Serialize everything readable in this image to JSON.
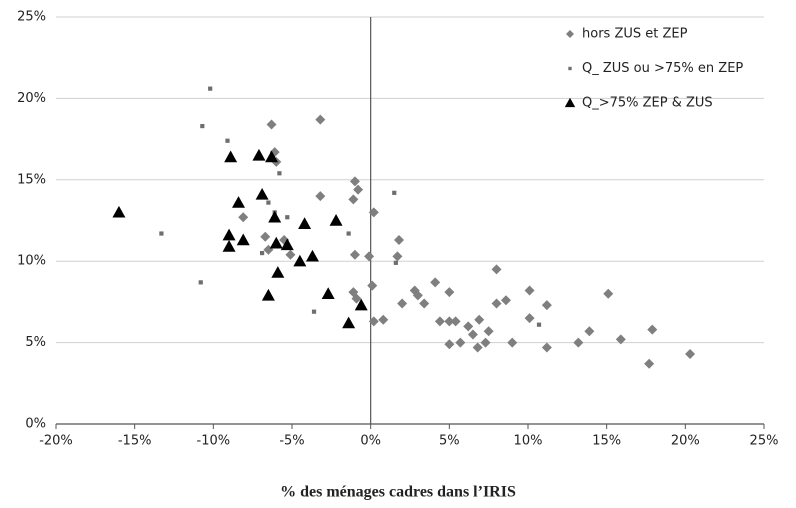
{
  "chart_data": {
    "type": "scatter",
    "xlabel": "% des ménages cadres dans l’IRIS",
    "xlim": [
      -20,
      25
    ],
    "xticks": [
      {
        "value": -20,
        "label": "-20%"
      },
      {
        "value": -15,
        "label": "-15%"
      },
      {
        "value": -10,
        "label": "-10%"
      },
      {
        "value": -5,
        "label": "-5%"
      },
      {
        "value": 0,
        "label": "0%"
      },
      {
        "value": 5,
        "label": "5%"
      },
      {
        "value": 10,
        "label": "10%"
      },
      {
        "value": 15,
        "label": "15%"
      },
      {
        "value": 20,
        "label": "20%"
      },
      {
        "value": 25,
        "label": "25%"
      }
    ],
    "ylim": [
      0,
      25
    ],
    "yticks": [
      {
        "value": 0,
        "label": "0%"
      },
      {
        "value": 5,
        "label": "5%"
      },
      {
        "value": 10,
        "label": "10%"
      },
      {
        "value": 15,
        "label": "15%"
      },
      {
        "value": 20,
        "label": "20%"
      },
      {
        "value": 25,
        "label": "25%"
      }
    ],
    "grid": true,
    "legend": "top-right",
    "series": [
      {
        "name": "hors ZUS et ZEP",
        "color": "#7f7f7f",
        "marker": "diamond",
        "x": [
          -8.1,
          -6.3,
          -6.1,
          -6.0,
          -3.2,
          -3.2,
          -6.7,
          -6.5,
          -5.1,
          -5.5,
          -1.0,
          -0.8,
          -1.1,
          -1.0,
          -1.1,
          -0.9,
          -0.1,
          0.1,
          0.2,
          0.2,
          0.8,
          1.8,
          1.7,
          2.0,
          2.8,
          3.0,
          3.4,
          4.1,
          4.4,
          5.0,
          5.0,
          5.4,
          5.0,
          5.7,
          6.2,
          6.5,
          6.9,
          6.8,
          7.3,
          7.5,
          8.0,
          8.0,
          8.6,
          9.0,
          10.1,
          10.1,
          11.2,
          11.2,
          13.2,
          13.9,
          15.1,
          15.9,
          17.9,
          17.7,
          20.3
        ],
        "values": [
          12.7,
          18.4,
          16.7,
          16.1,
          18.7,
          14.0,
          11.5,
          10.7,
          10.4,
          11.3,
          14.9,
          14.4,
          13.8,
          10.4,
          8.1,
          7.7,
          10.3,
          8.5,
          13.0,
          6.3,
          6.4,
          11.3,
          10.3,
          7.4,
          8.2,
          7.9,
          7.4,
          8.7,
          6.3,
          8.1,
          6.3,
          6.3,
          4.9,
          5.0,
          6.0,
          5.5,
          6.4,
          4.7,
          5.0,
          5.7,
          9.5,
          7.4,
          7.6,
          5.0,
          8.2,
          6.5,
          7.3,
          4.7,
          5.0,
          5.7,
          8.0,
          5.2,
          5.8,
          3.7,
          4.3
        ]
      },
      {
        "name": "Q_ ZUS ou >75% en ZEP",
        "color": "#6e6e6e",
        "marker": "square",
        "x": [
          -10.2,
          -10.7,
          -9.1,
          -6.5,
          -5.8,
          -6.1,
          -5.3,
          -13.3,
          -10.8,
          -6.9,
          -3.6,
          -1.4,
          1.5,
          1.6,
          10.7
        ],
        "values": [
          20.6,
          18.3,
          17.4,
          13.6,
          15.4,
          13.0,
          12.7,
          11.7,
          8.7,
          10.5,
          6.9,
          11.7,
          14.2,
          9.9,
          6.1
        ]
      },
      {
        "name": "Q_>75% ZEP & ZUS",
        "color": "#000000",
        "marker": "triangle",
        "x": [
          -16.0,
          -8.4,
          -8.1,
          -9.0,
          -9.0,
          -8.9,
          -7.1,
          -6.3,
          -6.9,
          -6.1,
          -6.0,
          -5.3,
          -5.9,
          -6.5,
          -4.5,
          -3.7,
          -4.2,
          -2.2,
          -2.7,
          -0.6,
          -1.4
        ],
        "values": [
          13.0,
          13.6,
          11.3,
          11.6,
          10.9,
          16.4,
          16.5,
          16.4,
          14.1,
          12.7,
          11.1,
          11.0,
          9.3,
          7.9,
          10.0,
          10.3,
          12.3,
          12.5,
          8.0,
          7.3,
          6.2
        ]
      }
    ]
  }
}
